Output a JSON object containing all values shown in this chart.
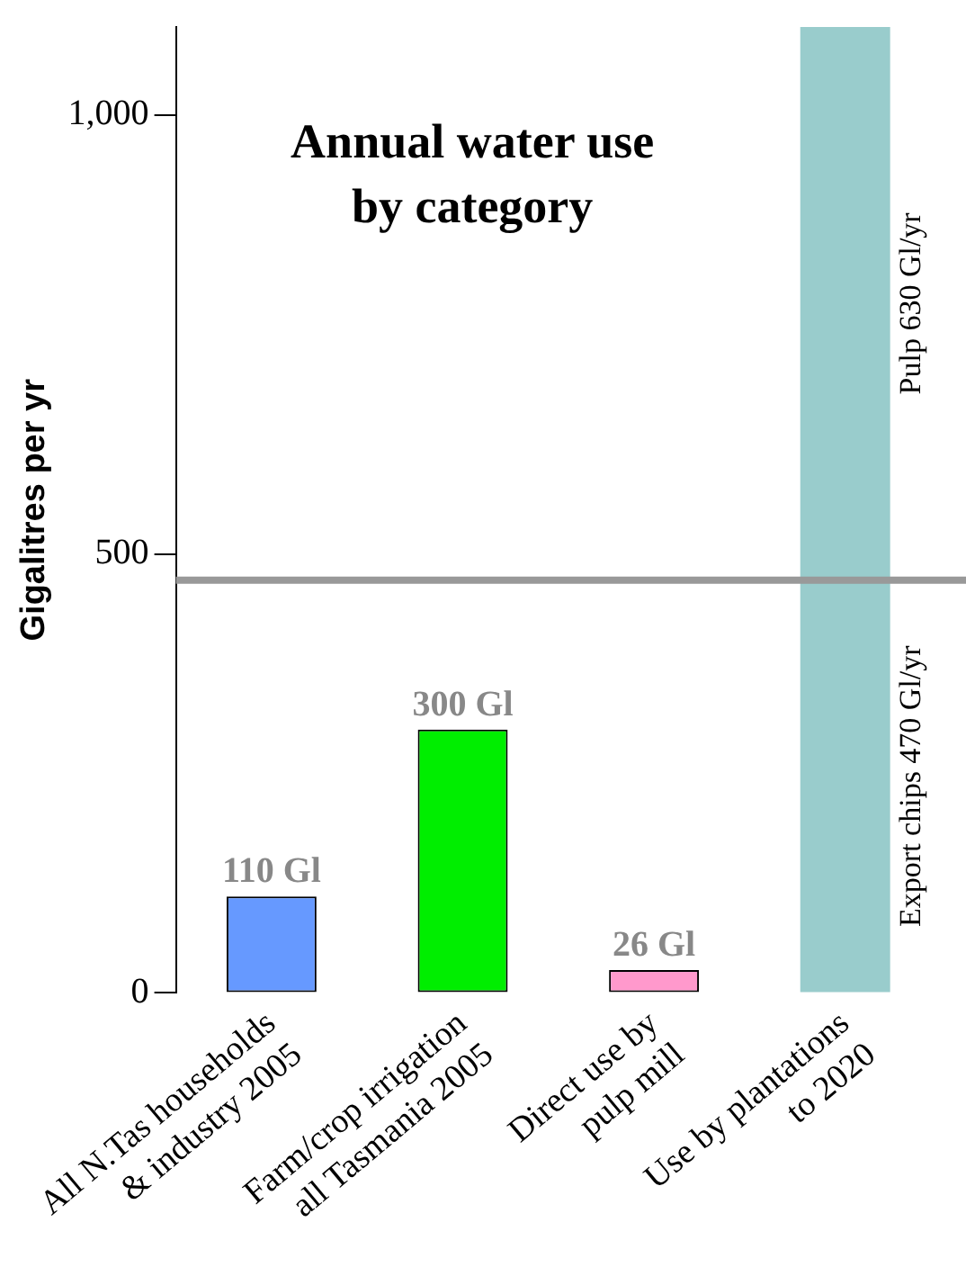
{
  "chart_data": {
    "type": "bar",
    "title": "Annual water use\nby category",
    "ylabel": "Gigalitres per yr",
    "categories": [
      "All N.Tas households\n& industry 2005",
      "Farm/crop irrigation\nall Tasmania 2005",
      "Direct use by\npulp mill",
      "Use by plantations\nto 2020"
    ],
    "stacked": true,
    "series": [
      {
        "colors": [
          "#6699ff",
          "#00ee00",
          "#ff99cc",
          "#99cccc"
        ],
        "values": [
          110,
          300,
          26,
          470
        ],
        "value_labels": [
          "110 Gl",
          "300 Gl",
          "26 Gl",
          "Export chips 470 Gl/yr"
        ]
      },
      {
        "colors": [
          null,
          null,
          null,
          "#99cccc"
        ],
        "values": [
          null,
          null,
          null,
          630
        ],
        "value_labels": [
          null,
          null,
          null,
          "Pulp 630 Gl/yr"
        ]
      }
    ],
    "ref_lines": [
      {
        "axis": "y",
        "value": 470,
        "color": "#999999"
      }
    ],
    "ylim": [
      0,
      1100
    ],
    "yticks": [
      0,
      500,
      {
        "value": 1000,
        "label": "1,000"
      }
    ],
    "grid": false,
    "legend": false
  }
}
